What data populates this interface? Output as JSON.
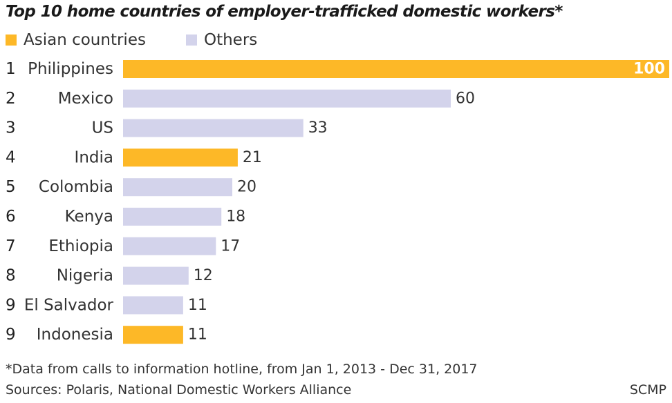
{
  "chart_data": {
    "type": "bar",
    "orientation": "horizontal",
    "title": "Top 10 home countries of employer-trafficked domestic workers*",
    "legend": [
      {
        "label": "Asian countries",
        "color": "#fdb827"
      },
      {
        "label": "Others",
        "color": "#d3d3eb"
      }
    ],
    "ranks": [
      "1",
      "2",
      "3",
      "4",
      "5",
      "6",
      "7",
      "8",
      "9",
      "9"
    ],
    "categories": [
      "Philippines",
      "Mexico",
      "US",
      "India",
      "Colombia",
      "Kenya",
      "Ethiopia",
      "Nigeria",
      "El Salvador",
      "Indonesia"
    ],
    "values": [
      100,
      60,
      33,
      21,
      20,
      18,
      17,
      12,
      11,
      11
    ],
    "groups": [
      "Asian countries",
      "Others",
      "Others",
      "Asian countries",
      "Others",
      "Others",
      "Others",
      "Others",
      "Others",
      "Asian countries"
    ],
    "xlim": [
      0,
      100
    ],
    "xlabel": "",
    "ylabel": "",
    "grid": false
  },
  "footnote": "*Data from calls to information hotline, from  Jan 1, 2013 - Dec 31, 2017",
  "sources": "Sources: Polaris, National Domestic Workers Alliance",
  "credit": "SCMP"
}
